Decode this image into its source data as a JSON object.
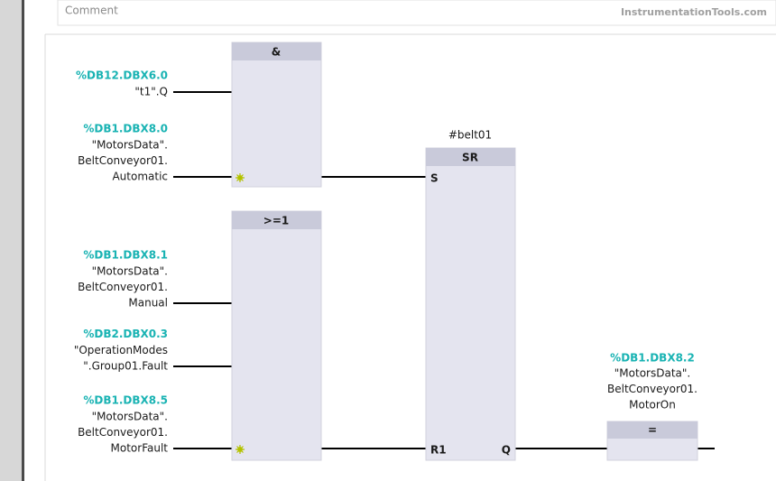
{
  "header": {
    "comment_label": "Comment",
    "watermark": "InstrumentationTools.com"
  },
  "blocks": [
    {
      "title": "&"
    },
    {
      "title": ">=1"
    },
    {
      "title": "SR",
      "instance": "#belt01",
      "pins": [
        "S",
        "R1",
        "Q"
      ]
    },
    {
      "title": "="
    }
  ],
  "inputs": [
    {
      "address": "%DB12.DBX6.0",
      "lines": [
        "\"t1\".Q"
      ]
    },
    {
      "address": "%DB1.DBX8.0",
      "lines": [
        "\"MotorsData\".",
        "BeltConveyor01.",
        "Automatic"
      ]
    },
    {
      "address": "%DB1.DBX8.1",
      "lines": [
        "\"MotorsData\".",
        "BeltConveyor01.",
        "Manual"
      ]
    },
    {
      "address": "%DB2.DBX0.3",
      "lines": [
        "\"OperationModes",
        "\".Group01.Fault"
      ]
    },
    {
      "address": "%DB1.DBX8.5",
      "lines": [
        "\"MotorsData\".",
        "BeltConveyor01.",
        "MotorFault"
      ]
    }
  ],
  "output": {
    "address": "%DB1.DBX8.2",
    "lines": [
      "\"MotorsData\".",
      "BeltConveyor01.",
      "MotorOn"
    ]
  }
}
